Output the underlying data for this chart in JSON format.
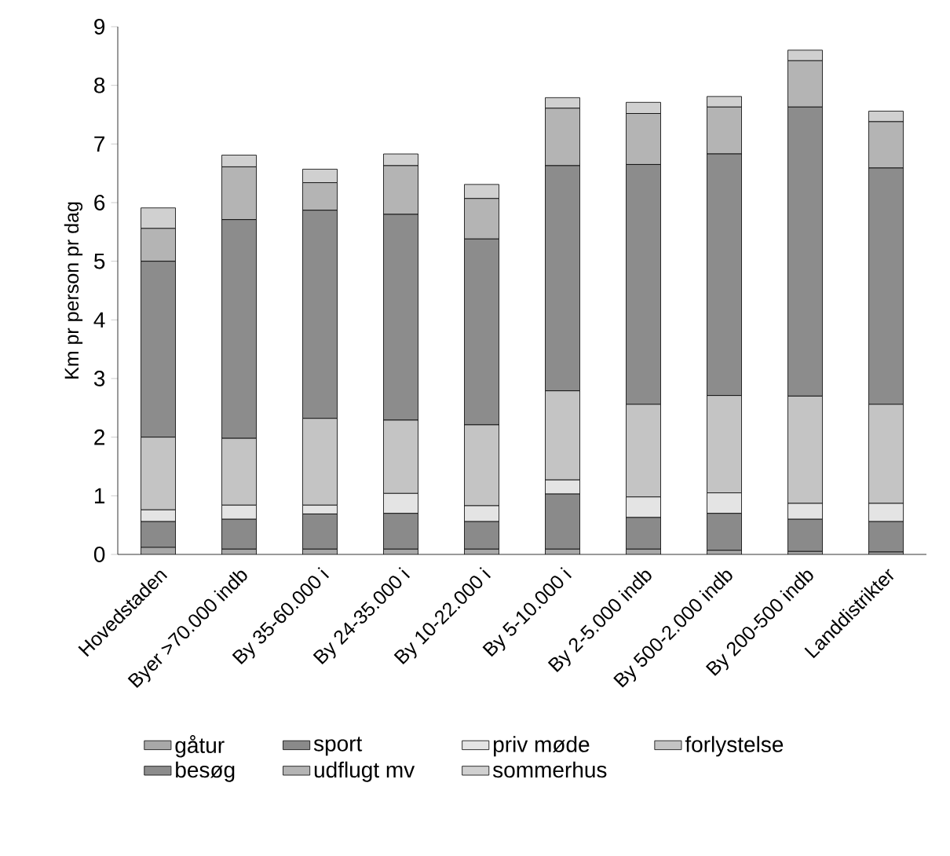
{
  "chart_data": {
    "type": "bar",
    "stacked": true,
    "ylabel": "Km pr person pr dag",
    "categories": [
      "Hovedstaden",
      "Byer >70.000 indb",
      "By 35-60.000 i",
      "By 24-35.000 i",
      "By 10-22.000 i",
      "By 5-10.000 i",
      "By 2-5.000 indb",
      "By 500-2.000 indb",
      "By 200-500 indb",
      "Landdistrikter"
    ],
    "series": [
      {
        "name": "gåtur",
        "color": "#a8a8a8",
        "values": [
          0.12,
          0.09,
          0.09,
          0.09,
          0.09,
          0.09,
          0.09,
          0.07,
          0.05,
          0.04
        ]
      },
      {
        "name": "sport",
        "color": "#8a8a8a",
        "values": [
          0.44,
          0.51,
          0.6,
          0.61,
          0.47,
          0.94,
          0.54,
          0.63,
          0.55,
          0.52
        ]
      },
      {
        "name": "priv møde",
        "color": "#e4e4e4",
        "values": [
          0.2,
          0.24,
          0.15,
          0.34,
          0.27,
          0.24,
          0.35,
          0.35,
          0.27,
          0.31
        ]
      },
      {
        "name": "forlystelse",
        "color": "#c4c4c4",
        "values": [
          1.24,
          1.14,
          1.48,
          1.25,
          1.38,
          1.52,
          1.58,
          1.66,
          1.83,
          1.69
        ]
      },
      {
        "name": "besøg",
        "color": "#8c8c8c",
        "values": [
          3.0,
          3.73,
          3.55,
          3.51,
          3.17,
          3.84,
          4.09,
          4.12,
          4.93,
          4.03
        ]
      },
      {
        "name": "udflugt mv",
        "color": "#b4b4b4",
        "values": [
          0.56,
          0.9,
          0.47,
          0.83,
          0.69,
          0.98,
          0.87,
          0.8,
          0.79,
          0.79
        ]
      },
      {
        "name": "sommerhus",
        "color": "#d0d0d0",
        "values": [
          0.35,
          0.2,
          0.23,
          0.2,
          0.24,
          0.18,
          0.19,
          0.18,
          0.18,
          0.18
        ]
      }
    ],
    "ylim": [
      0,
      9
    ],
    "yticks": [
      0,
      1,
      2,
      3,
      4,
      5,
      6,
      7,
      8,
      9
    ],
    "grid": false,
    "legend": "bottom"
  }
}
